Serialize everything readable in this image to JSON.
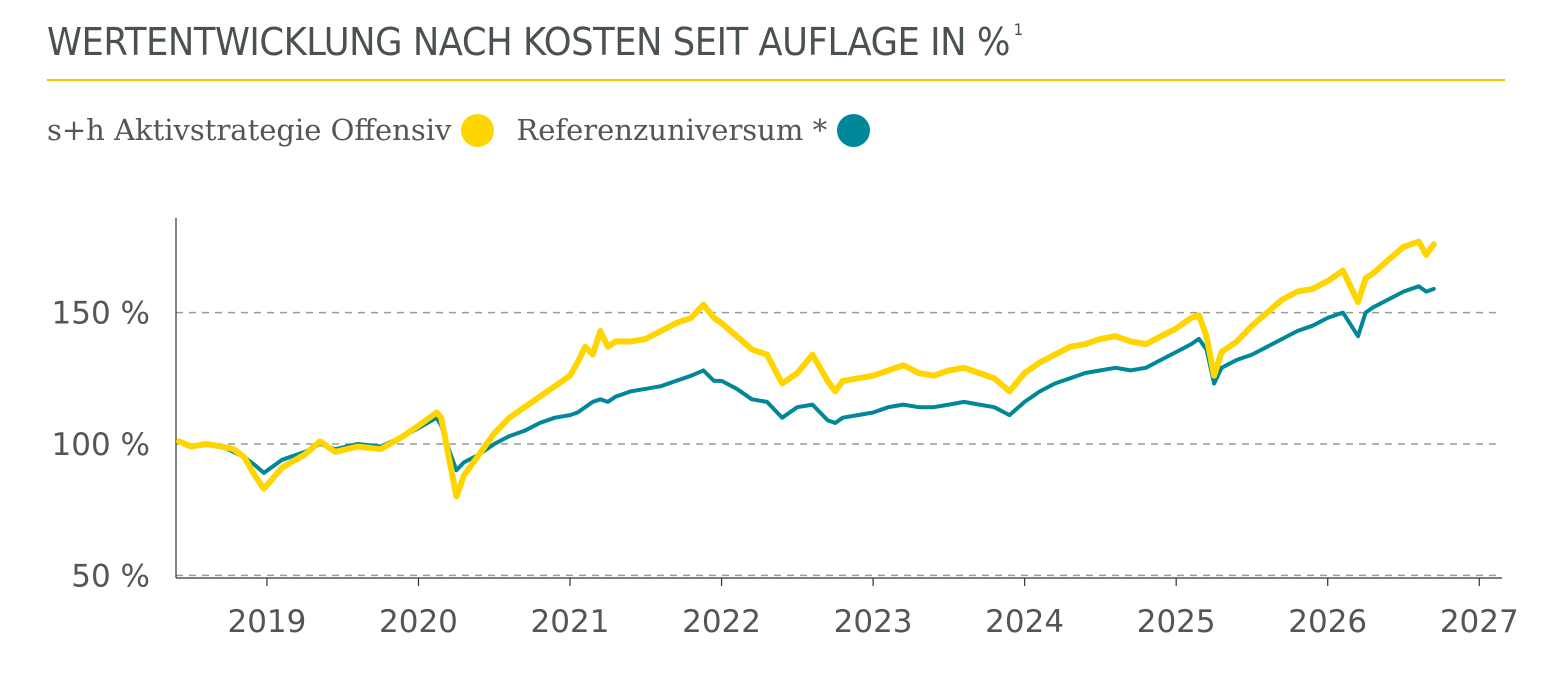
{
  "title": "WERTENTWICKLUNG NACH KOSTEN SEIT AUFLAGE IN %",
  "title_footnote": "1",
  "legend": [
    {
      "label": "s+h Aktivstrategie Offensiv",
      "color": "#ffd500"
    },
    {
      "label": "Referenzuniversum *",
      "color": "#008798"
    }
  ],
  "chart_data": {
    "type": "line",
    "xlim": [
      2018.4,
      2027.15
    ],
    "ylim": [
      49,
      186
    ],
    "x_ticks": [
      2019,
      2020,
      2021,
      2022,
      2023,
      2024,
      2025,
      2026,
      2027
    ],
    "x_tick_labels": [
      "2019",
      "2020",
      "2021",
      "2022",
      "2023",
      "2024",
      "2025",
      "2026",
      "2027"
    ],
    "y_ticks": [
      50,
      100,
      150
    ],
    "y_tick_labels": [
      "50 %",
      "100 %",
      "150 %"
    ],
    "grid": "horizontal dashed at y ticks",
    "legend_position": "top-left",
    "series": [
      {
        "name": "s+h Aktivstrategie Offensiv",
        "color": "#ffd500",
        "x": [
          2018.42,
          2018.5,
          2018.6,
          2018.7,
          2018.78,
          2018.85,
          2018.92,
          2018.98,
          2019.1,
          2019.25,
          2019.35,
          2019.45,
          2019.6,
          2019.75,
          2019.9,
          2020.0,
          2020.12,
          2020.15,
          2020.2,
          2020.25,
          2020.3,
          2020.4,
          2020.5,
          2020.6,
          2020.7,
          2020.8,
          2020.9,
          2021.0,
          2021.05,
          2021.1,
          2021.15,
          2021.2,
          2021.25,
          2021.3,
          2021.4,
          2021.5,
          2021.6,
          2021.7,
          2021.8,
          2021.88,
          2021.95,
          2022.0,
          2022.1,
          2022.2,
          2022.3,
          2022.4,
          2022.5,
          2022.6,
          2022.7,
          2022.75,
          2022.8,
          2022.9,
          2023.0,
          2023.1,
          2023.2,
          2023.3,
          2023.4,
          2023.5,
          2023.6,
          2023.7,
          2023.8,
          2023.9,
          2024.0,
          2024.1,
          2024.2,
          2024.3,
          2024.4,
          2024.5,
          2024.6,
          2024.7,
          2024.8,
          2024.9,
          2025.0,
          2025.1,
          2025.15,
          2025.2,
          2025.25,
          2025.3,
          2025.4,
          2025.5,
          2025.6,
          2025.7,
          2025.8,
          2025.9,
          2026.0,
          2026.1,
          2026.2,
          2026.25,
          2026.3,
          2026.4,
          2026.5,
          2026.6,
          2026.65,
          2026.7
        ],
        "values": [
          101,
          99,
          100,
          99,
          98,
          95,
          88,
          83,
          91,
          96,
          101,
          97,
          99,
          98,
          103,
          107,
          112,
          110,
          95,
          80,
          88,
          96,
          104,
          110,
          114,
          118,
          122,
          126,
          131,
          137,
          134,
          143,
          137,
          139,
          139,
          140,
          143,
          146,
          148,
          153,
          148,
          146,
          141,
          136,
          134,
          123,
          127,
          134,
          124,
          120,
          124,
          125,
          126,
          128,
          130,
          127,
          126,
          128,
          129,
          127,
          125,
          120,
          127,
          131,
          134,
          137,
          138,
          140,
          141,
          139,
          138,
          141,
          144,
          148,
          149,
          141,
          126,
          135,
          139,
          145,
          150,
          155,
          158,
          159,
          162,
          166,
          154,
          163,
          165,
          170,
          175,
          177,
          172,
          176
        ]
      },
      {
        "name": "Referenzuniversum *",
        "color": "#008798",
        "x": [
          2018.42,
          2018.5,
          2018.6,
          2018.7,
          2018.78,
          2018.85,
          2018.92,
          2018.98,
          2019.1,
          2019.25,
          2019.35,
          2019.45,
          2019.6,
          2019.75,
          2019.9,
          2020.0,
          2020.12,
          2020.15,
          2020.2,
          2020.25,
          2020.3,
          2020.4,
          2020.5,
          2020.6,
          2020.7,
          2020.8,
          2020.9,
          2021.0,
          2021.05,
          2021.1,
          2021.15,
          2021.2,
          2021.25,
          2021.3,
          2021.4,
          2021.5,
          2021.6,
          2021.7,
          2021.8,
          2021.88,
          2021.95,
          2022.0,
          2022.1,
          2022.2,
          2022.3,
          2022.4,
          2022.5,
          2022.6,
          2022.7,
          2022.75,
          2022.8,
          2022.9,
          2023.0,
          2023.1,
          2023.2,
          2023.3,
          2023.4,
          2023.5,
          2023.6,
          2023.7,
          2023.8,
          2023.9,
          2024.0,
          2024.1,
          2024.2,
          2024.3,
          2024.4,
          2024.5,
          2024.6,
          2024.7,
          2024.8,
          2024.9,
          2025.0,
          2025.1,
          2025.15,
          2025.2,
          2025.25,
          2025.3,
          2025.4,
          2025.5,
          2025.6,
          2025.7,
          2025.8,
          2025.9,
          2026.0,
          2026.1,
          2026.2,
          2026.25,
          2026.3,
          2026.4,
          2026.5,
          2026.6,
          2026.65,
          2026.7
        ],
        "values": [
          101,
          99,
          100,
          99,
          97,
          95,
          92,
          89,
          94,
          97,
          100,
          98,
          100,
          99,
          103,
          106,
          110,
          107,
          98,
          90,
          93,
          96,
          100,
          103,
          105,
          108,
          110,
          111,
          112,
          114,
          116,
          117,
          116,
          118,
          120,
          121,
          122,
          124,
          126,
          128,
          124,
          124,
          121,
          117,
          116,
          110,
          114,
          115,
          109,
          108,
          110,
          111,
          112,
          114,
          115,
          114,
          114,
          115,
          116,
          115,
          114,
          111,
          116,
          120,
          123,
          125,
          127,
          128,
          129,
          128,
          129,
          132,
          135,
          138,
          140,
          136,
          123,
          129,
          132,
          134,
          137,
          140,
          143,
          145,
          148,
          150,
          141,
          150,
          152,
          155,
          158,
          160,
          158,
          159
        ]
      }
    ]
  }
}
